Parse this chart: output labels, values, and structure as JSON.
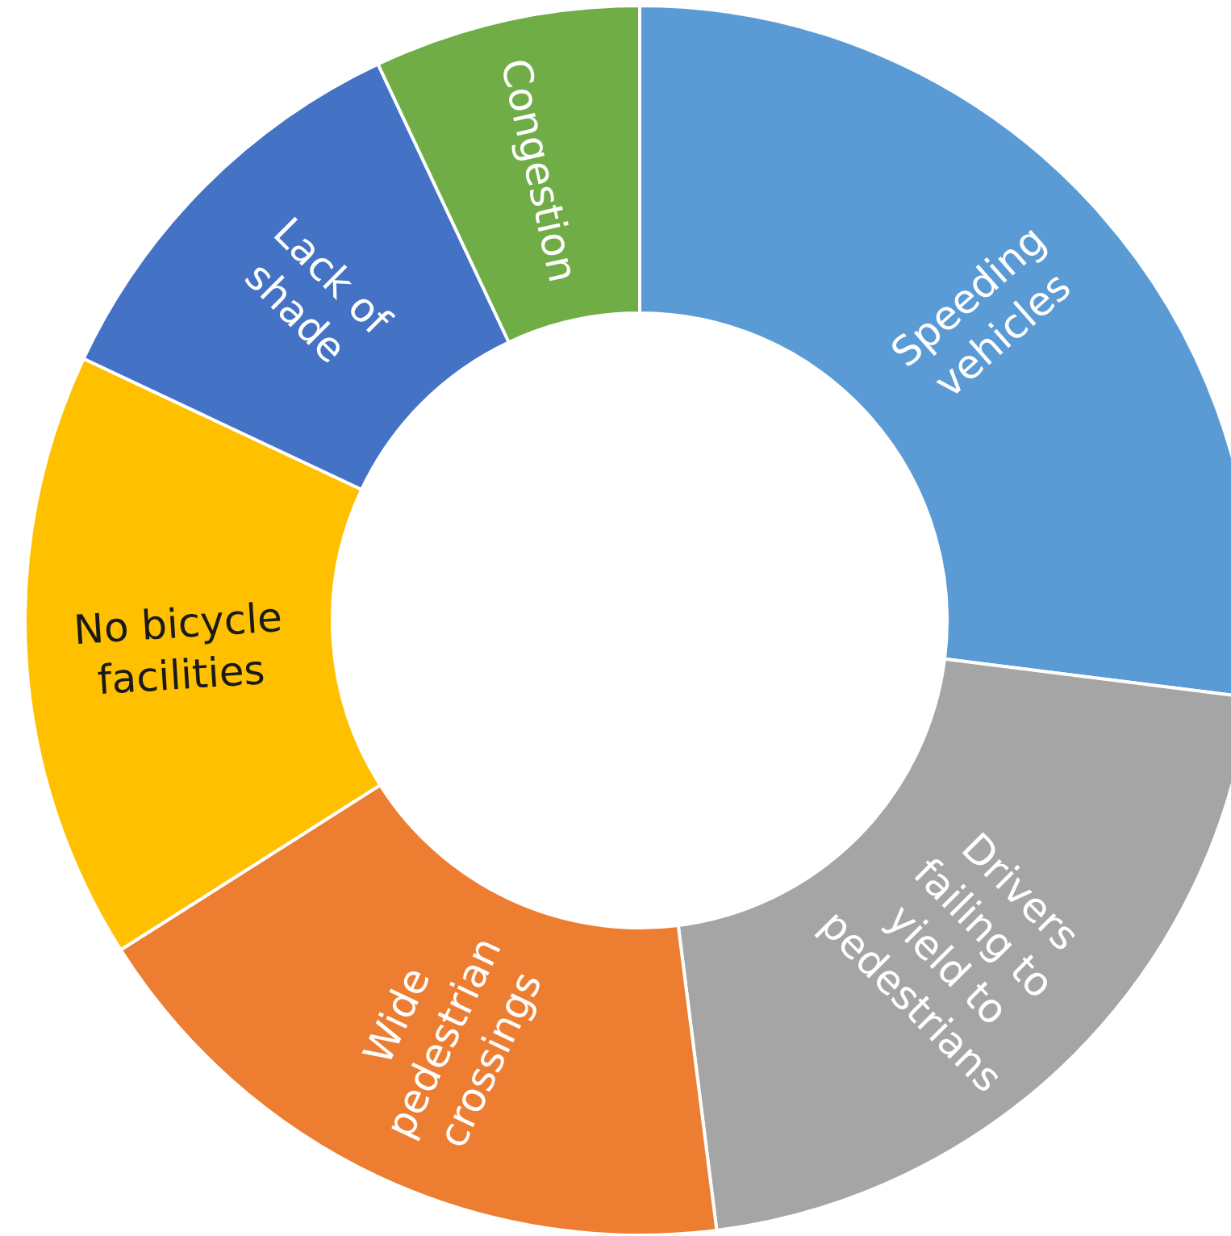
{
  "chart_data": {
    "type": "donut",
    "categories": [
      "Speeding vehicles",
      "Drivers failing to yield to pedestrians",
      "Wide pedestrian crossings",
      "No bicycle facilities",
      "Lack of shade",
      "Congestion"
    ],
    "values": [
      27,
      21,
      18,
      16,
      11,
      7
    ],
    "colors": [
      "#5b9bd5",
      "#a5a5a5",
      "#ed7d31",
      "#ffc000",
      "#4472c4",
      "#70ad47"
    ]
  }
}
